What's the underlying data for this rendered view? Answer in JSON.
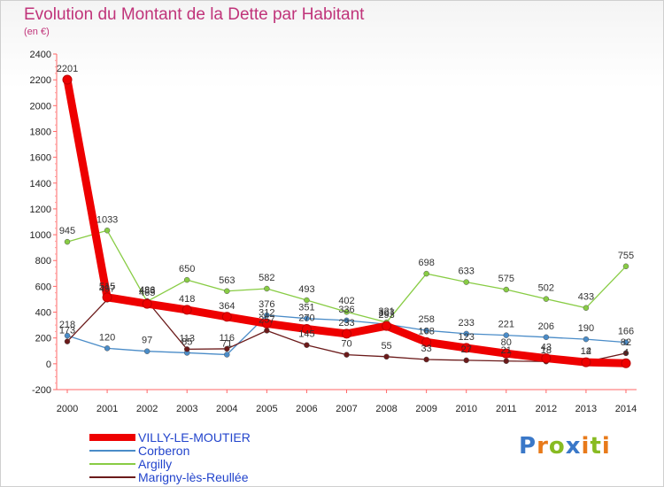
{
  "chart_data": {
    "type": "line",
    "title": "Evolution du Montant de la Dette par Habitant",
    "subtitle": "(en €)",
    "x": [
      "2000",
      "2001",
      "2002",
      "2003",
      "2004",
      "2005",
      "2006",
      "2007",
      "2008",
      "2009",
      "2010",
      "2011",
      "2012",
      "2013",
      "2014"
    ],
    "ylim": [
      -200,
      2400
    ],
    "yticks": [
      -200,
      0,
      200,
      400,
      600,
      800,
      1000,
      1200,
      1400,
      1600,
      1800,
      2000,
      2200,
      2400
    ],
    "grid": false,
    "legend_position": "bottom-left",
    "series": [
      {
        "name": "VILLY-LE-MOUTIER",
        "color": "#ee0000",
        "values": [
          2201,
          515,
          465,
          418,
          364,
          312,
          270,
          233,
          293,
          168,
          123,
          80,
          43,
          12,
          4
        ]
      },
      {
        "name": "Corberon",
        "color": "#4a8cc8",
        "values": [
          218,
          120,
          97,
          85,
          71,
          376,
          351,
          336,
          307,
          258,
          233,
          221,
          206,
          190,
          166
        ]
      },
      {
        "name": "Argilly",
        "color": "#88cc44",
        "values": [
          945,
          1033,
          483,
          650,
          563,
          582,
          493,
          402,
          321,
          698,
          633,
          575,
          502,
          433,
          755
        ]
      },
      {
        "name": "Marigny-lès-Reullée",
        "color": "#6b1a1a",
        "values": [
          173,
          497,
          486,
          113,
          116,
          257,
          145,
          70,
          55,
          33,
          27,
          21,
          18,
          14,
          82
        ]
      }
    ]
  },
  "logo": {
    "letters": [
      "P",
      "r",
      "o",
      "x",
      "i",
      "t",
      "i"
    ],
    "colors": [
      "#3a78c8",
      "#e87a1a",
      "#88bb22",
      "#3a78c8",
      "#e87a1a",
      "#88bb22",
      "#e87a1a"
    ]
  }
}
